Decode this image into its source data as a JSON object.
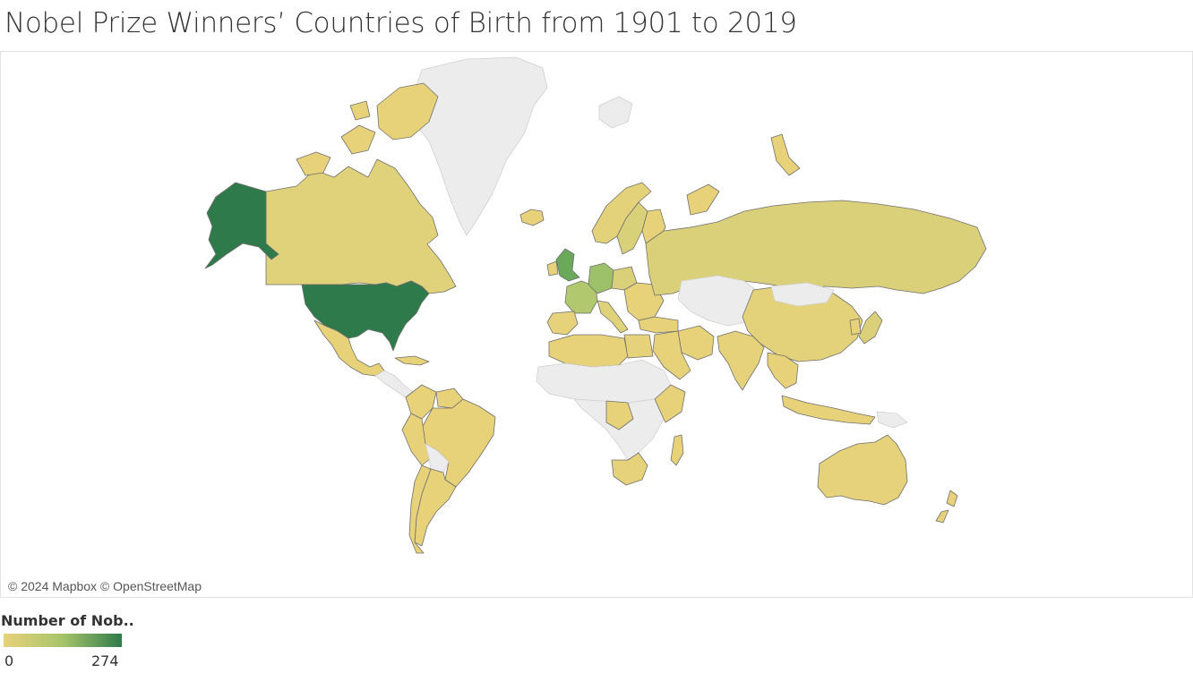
{
  "title": "Nobel Prize Winners’ Countries of Birth from 1901 to 2019",
  "attribution": "© 2024 Mapbox © OpenStreetMap",
  "legend": {
    "title": "Number of Nob..",
    "min": "0",
    "max": "274",
    "min_value": 0,
    "max_value": 274,
    "color_low": "#e7d27a",
    "color_mid": "#a7c46a",
    "color_high": "#2f7a4b"
  },
  "colors": {
    "no_data": "#ececec",
    "border": "#6f6f6f",
    "background": "#ffffff"
  },
  "map_data": {
    "type": "choropleth",
    "projection": "web-mercator",
    "countries": [
      {
        "name": "United States",
        "value": 274,
        "color": "#2f7a4b"
      },
      {
        "name": "United Kingdom",
        "value": 95,
        "color": "#6aa85a"
      },
      {
        "name": "Germany",
        "value": 80,
        "color": "#9cc16a"
      },
      {
        "name": "France",
        "value": 57,
        "color": "#b2c86f"
      },
      {
        "name": "Sweden",
        "value": 29,
        "color": "#d9d07a"
      },
      {
        "name": "Russia",
        "value": 27,
        "color": "#dbd07a"
      },
      {
        "name": "Japan",
        "value": 27,
        "color": "#dbd07a"
      },
      {
        "name": "Canada",
        "value": 20,
        "color": "#e0d17b"
      },
      {
        "name": "Poland",
        "value": 28,
        "color": "#dbd07a"
      },
      {
        "name": "Italy",
        "value": 19,
        "color": "#e0d17b"
      },
      {
        "name": "China",
        "value": 12,
        "color": "#e3d27a"
      },
      {
        "name": "Australia",
        "value": 10,
        "color": "#e5d27a"
      },
      {
        "name": "India",
        "value": 9,
        "color": "#e5d27a"
      },
      {
        "name": "Egypt",
        "value": 6,
        "color": "#e6d27a"
      },
      {
        "name": "South Africa",
        "value": 9,
        "color": "#e5d27a"
      },
      {
        "name": "Argentina",
        "value": 4,
        "color": "#e7d27a"
      },
      {
        "name": "Brazil",
        "value": 1,
        "color": "#e7d27a"
      },
      {
        "name": "Mexico",
        "value": 3,
        "color": "#e7d27a"
      },
      {
        "name": "Norway",
        "value": 12,
        "color": "#e3d27a"
      },
      {
        "name": "Spain",
        "value": 7,
        "color": "#e6d27a"
      }
    ]
  }
}
